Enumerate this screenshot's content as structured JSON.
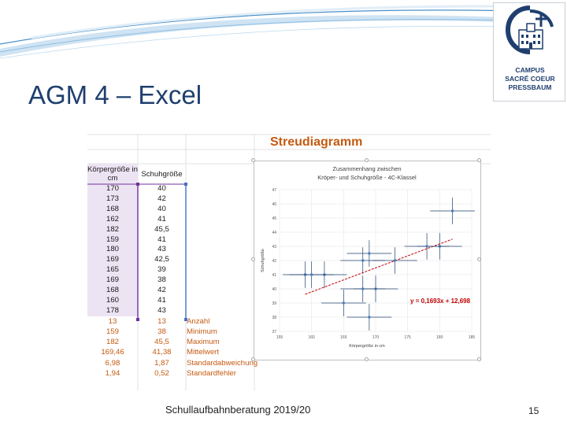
{
  "slide": {
    "title": "AGM 4 – Excel",
    "footer": "Schullaufbahnberatung 2019/20",
    "page_number": "15",
    "colors": {
      "title": "#1f3f6e",
      "accent": "#c55a11",
      "swoosh": "#4a90c8"
    }
  },
  "logo": {
    "line1": "CAMPUS",
    "line2": "SACRÉ COEUR",
    "line3": "PRESSBAUM",
    "icon": "school-building-cross-icon"
  },
  "sheet": {
    "header_a": "Körpergröße in cm",
    "header_b": "Schuhgröße",
    "rows": [
      {
        "a": "170",
        "b": "40"
      },
      {
        "a": "173",
        "b": "42"
      },
      {
        "a": "168",
        "b": "40"
      },
      {
        "a": "162",
        "b": "41"
      },
      {
        "a": "182",
        "b": "45,5"
      },
      {
        "a": "159",
        "b": "41"
      },
      {
        "a": "180",
        "b": "43"
      },
      {
        "a": "169",
        "b": "42,5"
      },
      {
        "a": "165",
        "b": "39"
      },
      {
        "a": "169",
        "b": "38"
      },
      {
        "a": "168",
        "b": "42"
      },
      {
        "a": "160",
        "b": "41"
      },
      {
        "a": "178",
        "b": "43"
      }
    ],
    "stats": [
      {
        "a": "13",
        "b": "13",
        "label": "Anzahl"
      },
      {
        "a": "159",
        "b": "38",
        "label": "Minimum"
      },
      {
        "a": "182",
        "b": "45,5",
        "label": "Maximum"
      },
      {
        "a": "169,46",
        "b": "41,38",
        "label": "Mittelwert"
      },
      {
        "a": "6,98",
        "b": "1,87",
        "label": "Standardabweichung"
      },
      {
        "a": "1,94",
        "b": "0,52",
        "label": "Standardfehler"
      }
    ],
    "chart_heading": "Streudiagramm"
  },
  "chart_data": {
    "type": "scatter",
    "title": "Zusammenhang zwischen Kröper- und Schuhgröße - 4C-Klassel",
    "xlabel": "Körpergröße in cm",
    "ylabel": "Schuhgröße",
    "xlim": [
      155,
      185
    ],
    "ylim": [
      37,
      47
    ],
    "xticks": [
      "155",
      "160",
      "165",
      "170",
      "175",
      "180",
      "185"
    ],
    "yticks": [
      "37",
      "38",
      "39",
      "40",
      "41",
      "42",
      "43",
      "44",
      "45",
      "46",
      "47"
    ],
    "grid": true,
    "error_bars": true,
    "trendline": {
      "type": "linear",
      "slope": 0.1693,
      "intercept": 12.698,
      "label": "y = 0,1693x + 12,698"
    },
    "series": [
      {
        "points": [
          {
            "x": 170,
            "y": 40
          },
          {
            "x": 173,
            "y": 42
          },
          {
            "x": 168,
            "y": 40
          },
          {
            "x": 162,
            "y": 41
          },
          {
            "x": 182,
            "y": 45.5
          },
          {
            "x": 159,
            "y": 41
          },
          {
            "x": 180,
            "y": 43
          },
          {
            "x": 169,
            "y": 42.5
          },
          {
            "x": 165,
            "y": 39
          },
          {
            "x": 169,
            "y": 38
          },
          {
            "x": 168,
            "y": 42
          },
          {
            "x": 160,
            "y": 41
          },
          {
            "x": 178,
            "y": 43
          }
        ]
      }
    ]
  }
}
